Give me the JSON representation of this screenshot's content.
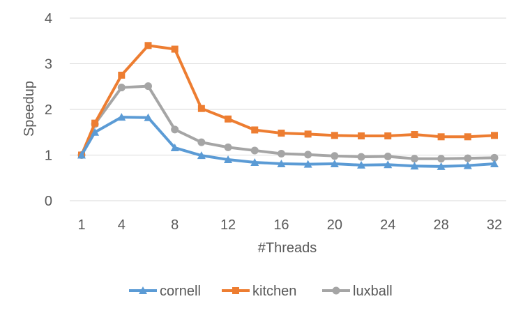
{
  "chart_data": {
    "type": "line",
    "xlabel": "#Threads",
    "ylabel": "Speedup",
    "x": [
      1,
      2,
      4,
      6,
      8,
      10,
      12,
      14,
      16,
      18,
      20,
      22,
      24,
      26,
      28,
      30,
      32
    ],
    "x_ticks": [
      1,
      4,
      8,
      12,
      16,
      20,
      24,
      28,
      32
    ],
    "y_ticks": [
      0,
      1,
      2,
      3,
      4
    ],
    "ylim": [
      0,
      4
    ],
    "grid": "horizontal",
    "legend": "bottom",
    "series": [
      {
        "name": "cornell",
        "color": "#5b9bd5",
        "marker": "triangle",
        "values": [
          1.0,
          1.5,
          1.83,
          1.82,
          1.16,
          0.99,
          0.9,
          0.84,
          0.81,
          0.8,
          0.81,
          0.78,
          0.79,
          0.76,
          0.75,
          0.77,
          0.81
        ]
      },
      {
        "name": "kitchen",
        "color": "#ed7d31",
        "marker": "square",
        "values": [
          1.0,
          1.7,
          2.75,
          3.4,
          3.32,
          2.02,
          1.79,
          1.55,
          1.48,
          1.46,
          1.43,
          1.42,
          1.42,
          1.45,
          1.4,
          1.4,
          1.43
        ]
      },
      {
        "name": "luxball",
        "color": "#a5a5a5",
        "marker": "circle",
        "values": [
          1.0,
          1.68,
          2.48,
          2.51,
          1.56,
          1.28,
          1.17,
          1.1,
          1.03,
          1.01,
          0.98,
          0.96,
          0.97,
          0.92,
          0.92,
          0.93,
          0.94
        ]
      }
    ]
  }
}
